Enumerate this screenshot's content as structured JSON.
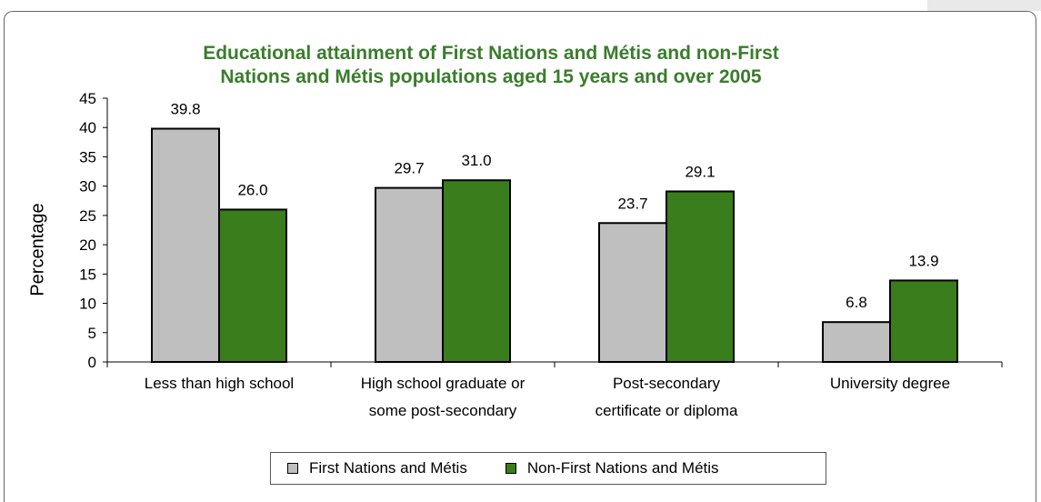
{
  "colors": {
    "first_nations": "#bfbfbf",
    "non_first_nations": "#3a7d1c",
    "title": "#3a7d2c"
  },
  "chart_data": {
    "type": "bar",
    "title": "Educational attainment of First Nations and Métis and non-First Nations and Métis populations aged 15 years and over 2005",
    "ylabel": "Percentage",
    "xlabel": "",
    "ylim": [
      0,
      45
    ],
    "yticks": [
      "0",
      "5",
      "10",
      "15",
      "20",
      "25",
      "30",
      "35",
      "40",
      "45"
    ],
    "categories": [
      [
        "Less than high school"
      ],
      [
        "High school graduate or",
        "some post-secondary"
      ],
      [
        "Post-secondary",
        "certificate or diploma"
      ],
      [
        "University degree"
      ]
    ],
    "series": [
      {
        "name": "First Nations and Métis",
        "values": [
          39.8,
          29.7,
          23.7,
          6.8
        ],
        "labels": [
          "39.8",
          "29.7",
          "23.7",
          "6.8"
        ]
      },
      {
        "name": "Non-First Nations and Métis",
        "values": [
          26.0,
          31.0,
          29.1,
          13.9
        ],
        "labels": [
          "26.0",
          "31.0",
          "29.1",
          "13.9"
        ]
      }
    ],
    "legend_position": "bottom",
    "grid": false
  }
}
